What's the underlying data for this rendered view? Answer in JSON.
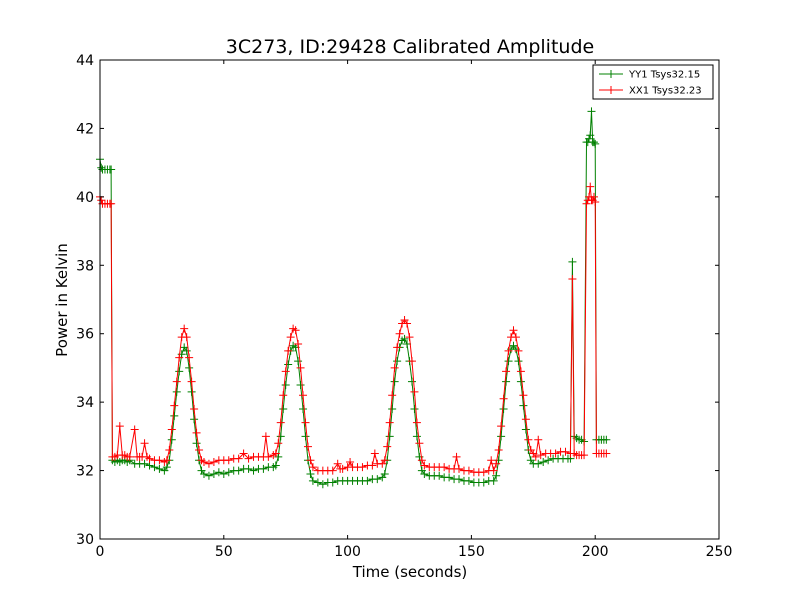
{
  "chart_data": {
    "type": "line",
    "title": "3C273, ID:29428 Calibrated Amplitude",
    "xlabel": "Time (seconds)",
    "ylabel": "Power in Kelvin",
    "xlim": [
      0,
      250
    ],
    "ylim": [
      30,
      44
    ],
    "xticks": [
      "0",
      "50",
      "100",
      "150",
      "200",
      "250"
    ],
    "yticks": [
      "30",
      "32",
      "34",
      "36",
      "38",
      "40",
      "42",
      "44"
    ],
    "grid": false,
    "legend_position": "top-right",
    "marker": "plus",
    "series": [
      {
        "name": "YY1 Tsys32.15",
        "color": "#008000",
        "points": [
          [
            0,
            41.1
          ],
          [
            0.5,
            40.85
          ],
          [
            1,
            40.8
          ],
          [
            2,
            40.8
          ],
          [
            3,
            40.8
          ],
          [
            4,
            40.8
          ],
          [
            4.5,
            40.8
          ],
          [
            5,
            32.3
          ],
          [
            6,
            32.25
          ],
          [
            7,
            32.3
          ],
          [
            8,
            32.25
          ],
          [
            9,
            32.3
          ],
          [
            10,
            32.3
          ],
          [
            11,
            32.25
          ],
          [
            12,
            32.3
          ],
          [
            14,
            32.2
          ],
          [
            16,
            32.2
          ],
          [
            18,
            32.2
          ],
          [
            20,
            32.15
          ],
          [
            22,
            32.1
          ],
          [
            24,
            32.05
          ],
          [
            26,
            32.0
          ],
          [
            27,
            32.1
          ],
          [
            28,
            32.3
          ],
          [
            29,
            32.9
          ],
          [
            30,
            33.6
          ],
          [
            31,
            34.3
          ],
          [
            32,
            34.9
          ],
          [
            33,
            35.4
          ],
          [
            34,
            35.6
          ],
          [
            35,
            35.5
          ],
          [
            36,
            35.0
          ],
          [
            37,
            34.3
          ],
          [
            38,
            33.5
          ],
          [
            39,
            32.8
          ],
          [
            40,
            32.3
          ],
          [
            41,
            32.0
          ],
          [
            42,
            31.9
          ],
          [
            44,
            31.85
          ],
          [
            46,
            31.9
          ],
          [
            48,
            31.95
          ],
          [
            50,
            31.9
          ],
          [
            52,
            31.95
          ],
          [
            54,
            32.0
          ],
          [
            56,
            32.0
          ],
          [
            58,
            32.05
          ],
          [
            60,
            32.05
          ],
          [
            62,
            32.0
          ],
          [
            64,
            32.05
          ],
          [
            66,
            32.05
          ],
          [
            68,
            32.1
          ],
          [
            70,
            32.1
          ],
          [
            71,
            32.15
          ],
          [
            72,
            32.4
          ],
          [
            73,
            33.0
          ],
          [
            74,
            33.8
          ],
          [
            75,
            34.5
          ],
          [
            76,
            35.1
          ],
          [
            77,
            35.5
          ],
          [
            78,
            35.65
          ],
          [
            79,
            35.6
          ],
          [
            80,
            35.2
          ],
          [
            81,
            34.5
          ],
          [
            82,
            33.8
          ],
          [
            83,
            33.0
          ],
          [
            84,
            32.3
          ],
          [
            85,
            31.9
          ],
          [
            86,
            31.7
          ],
          [
            88,
            31.65
          ],
          [
            90,
            31.6
          ],
          [
            92,
            31.65
          ],
          [
            94,
            31.65
          ],
          [
            96,
            31.7
          ],
          [
            98,
            31.7
          ],
          [
            100,
            31.7
          ],
          [
            102,
            31.7
          ],
          [
            104,
            31.7
          ],
          [
            106,
            31.7
          ],
          [
            108,
            31.7
          ],
          [
            110,
            31.75
          ],
          [
            112,
            31.75
          ],
          [
            114,
            31.8
          ],
          [
            115,
            31.9
          ],
          [
            116,
            32.3
          ],
          [
            117,
            33.0
          ],
          [
            118,
            33.8
          ],
          [
            119,
            34.6
          ],
          [
            120,
            35.2
          ],
          [
            121,
            35.6
          ],
          [
            122,
            35.8
          ],
          [
            123,
            35.85
          ],
          [
            124,
            35.7
          ],
          [
            125,
            35.2
          ],
          [
            126,
            34.6
          ],
          [
            127,
            33.8
          ],
          [
            128,
            33.0
          ],
          [
            129,
            32.4
          ],
          [
            130,
            32.0
          ],
          [
            131,
            31.9
          ],
          [
            133,
            31.85
          ],
          [
            135,
            31.85
          ],
          [
            137,
            31.85
          ],
          [
            139,
            31.8
          ],
          [
            141,
            31.8
          ],
          [
            143,
            31.75
          ],
          [
            145,
            31.75
          ],
          [
            147,
            31.7
          ],
          [
            149,
            31.7
          ],
          [
            151,
            31.65
          ],
          [
            153,
            31.65
          ],
          [
            155,
            31.65
          ],
          [
            157,
            31.7
          ],
          [
            159,
            31.7
          ],
          [
            160,
            31.85
          ],
          [
            161,
            32.3
          ],
          [
            162,
            33.0
          ],
          [
            163,
            33.8
          ],
          [
            164,
            34.6
          ],
          [
            165,
            35.2
          ],
          [
            166,
            35.55
          ],
          [
            167,
            35.65
          ],
          [
            168,
            35.55
          ],
          [
            169,
            35.2
          ],
          [
            170,
            34.6
          ],
          [
            171,
            33.9
          ],
          [
            172,
            33.2
          ],
          [
            173,
            32.6
          ],
          [
            174,
            32.3
          ],
          [
            175,
            32.2
          ],
          [
            177,
            32.2
          ],
          [
            179,
            32.25
          ],
          [
            181,
            32.3
          ],
          [
            183,
            32.35
          ],
          [
            185,
            32.35
          ],
          [
            187,
            32.35
          ],
          [
            189,
            32.35
          ],
          [
            190,
            32.35
          ],
          [
            190.8,
            38.1
          ],
          [
            191.5,
            33.0
          ],
          [
            192.5,
            32.95
          ],
          [
            193.5,
            32.9
          ],
          [
            194.5,
            32.9
          ],
          [
            195.5,
            32.85
          ],
          [
            196.5,
            41.6
          ],
          [
            197,
            41.6
          ],
          [
            197.5,
            41.7
          ],
          [
            198,
            41.8
          ],
          [
            198.5,
            42.5
          ],
          [
            199,
            41.6
          ],
          [
            199.5,
            41.6
          ],
          [
            200,
            41.55
          ],
          [
            200.5,
            32.9
          ],
          [
            201.5,
            32.9
          ],
          [
            202.5,
            32.9
          ],
          [
            203.5,
            32.9
          ],
          [
            204.5,
            32.9
          ]
        ]
      },
      {
        "name": "XX1 Tsys32.23",
        "color": "#ff0000",
        "points": [
          [
            0,
            40.0
          ],
          [
            0.5,
            39.9
          ],
          [
            1,
            39.8
          ],
          [
            2,
            39.8
          ],
          [
            3,
            39.8
          ],
          [
            4,
            39.8
          ],
          [
            4.5,
            39.8
          ],
          [
            5,
            32.4
          ],
          [
            6,
            32.4
          ],
          [
            7,
            32.45
          ],
          [
            8,
            33.3
          ],
          [
            9,
            32.45
          ],
          [
            10,
            32.45
          ],
          [
            11,
            32.4
          ],
          [
            12,
            32.4
          ],
          [
            14,
            33.2
          ],
          [
            15,
            32.4
          ],
          [
            16,
            32.4
          ],
          [
            17,
            32.4
          ],
          [
            18,
            32.8
          ],
          [
            19,
            32.4
          ],
          [
            20,
            32.35
          ],
          [
            22,
            32.3
          ],
          [
            24,
            32.3
          ],
          [
            26,
            32.25
          ],
          [
            27,
            32.3
          ],
          [
            28,
            32.6
          ],
          [
            29,
            33.2
          ],
          [
            30,
            33.9
          ],
          [
            31,
            34.6
          ],
          [
            32,
            35.3
          ],
          [
            33,
            35.9
          ],
          [
            34,
            36.15
          ],
          [
            35,
            35.9
          ],
          [
            36,
            35.3
          ],
          [
            37,
            34.6
          ],
          [
            38,
            33.8
          ],
          [
            39,
            33.1
          ],
          [
            40,
            32.6
          ],
          [
            41,
            32.3
          ],
          [
            42,
            32.25
          ],
          [
            44,
            32.2
          ],
          [
            46,
            32.25
          ],
          [
            48,
            32.3
          ],
          [
            50,
            32.3
          ],
          [
            52,
            32.3
          ],
          [
            54,
            32.35
          ],
          [
            56,
            32.35
          ],
          [
            58,
            32.5
          ],
          [
            60,
            32.35
          ],
          [
            62,
            32.4
          ],
          [
            64,
            32.4
          ],
          [
            66,
            32.4
          ],
          [
            67,
            33.0
          ],
          [
            68,
            32.4
          ],
          [
            70,
            32.45
          ],
          [
            71,
            32.5
          ],
          [
            72,
            32.8
          ],
          [
            73,
            33.4
          ],
          [
            74,
            34.2
          ],
          [
            75,
            34.9
          ],
          [
            76,
            35.5
          ],
          [
            77,
            35.9
          ],
          [
            78,
            36.15
          ],
          [
            79,
            36.1
          ],
          [
            80,
            35.7
          ],
          [
            81,
            35.0
          ],
          [
            82,
            34.2
          ],
          [
            83,
            33.4
          ],
          [
            84,
            32.7
          ],
          [
            85,
            32.3
          ],
          [
            86,
            32.1
          ],
          [
            88,
            32.0
          ],
          [
            90,
            32.0
          ],
          [
            92,
            32.0
          ],
          [
            94,
            32.0
          ],
          [
            96,
            32.2
          ],
          [
            97,
            32.05
          ],
          [
            98,
            32.05
          ],
          [
            100,
            32.1
          ],
          [
            101,
            32.25
          ],
          [
            102,
            32.1
          ],
          [
            104,
            32.1
          ],
          [
            106,
            32.1
          ],
          [
            108,
            32.15
          ],
          [
            110,
            32.15
          ],
          [
            111,
            32.5
          ],
          [
            112,
            32.2
          ],
          [
            114,
            32.2
          ],
          [
            115,
            32.3
          ],
          [
            116,
            32.7
          ],
          [
            117,
            33.4
          ],
          [
            118,
            34.2
          ],
          [
            119,
            35.0
          ],
          [
            120,
            35.6
          ],
          [
            121,
            36.0
          ],
          [
            122,
            36.3
          ],
          [
            123,
            36.4
          ],
          [
            124,
            36.3
          ],
          [
            125,
            35.9
          ],
          [
            126,
            35.2
          ],
          [
            127,
            34.3
          ],
          [
            128,
            33.4
          ],
          [
            129,
            32.8
          ],
          [
            130,
            32.3
          ],
          [
            131,
            32.15
          ],
          [
            133,
            32.1
          ],
          [
            135,
            32.1
          ],
          [
            137,
            32.1
          ],
          [
            139,
            32.1
          ],
          [
            141,
            32.05
          ],
          [
            143,
            32.05
          ],
          [
            144,
            32.4
          ],
          [
            145,
            32.05
          ],
          [
            147,
            32.0
          ],
          [
            149,
            32.0
          ],
          [
            151,
            31.95
          ],
          [
            153,
            31.95
          ],
          [
            155,
            31.95
          ],
          [
            157,
            32.0
          ],
          [
            158,
            32.3
          ],
          [
            159,
            32.0
          ],
          [
            160,
            32.2
          ],
          [
            161,
            32.6
          ],
          [
            162,
            33.3
          ],
          [
            163,
            34.1
          ],
          [
            164,
            34.9
          ],
          [
            165,
            35.5
          ],
          [
            166,
            35.9
          ],
          [
            167,
            36.1
          ],
          [
            168,
            35.9
          ],
          [
            169,
            35.5
          ],
          [
            170,
            34.9
          ],
          [
            171,
            34.2
          ],
          [
            172,
            33.5
          ],
          [
            173,
            32.9
          ],
          [
            174,
            32.6
          ],
          [
            175,
            32.5
          ],
          [
            176,
            32.4
          ],
          [
            177,
            32.9
          ],
          [
            178,
            32.45
          ],
          [
            180,
            32.5
          ],
          [
            182,
            32.5
          ],
          [
            184,
            32.5
          ],
          [
            186,
            32.55
          ],
          [
            188,
            32.55
          ],
          [
            190,
            32.5
          ],
          [
            190.8,
            37.6
          ],
          [
            191.5,
            32.5
          ],
          [
            192.5,
            32.45
          ],
          [
            193.5,
            32.45
          ],
          [
            194.5,
            32.45
          ],
          [
            195.5,
            32.45
          ],
          [
            196.5,
            39.8
          ],
          [
            197,
            39.9
          ],
          [
            197.5,
            40.0
          ],
          [
            198,
            40.3
          ],
          [
            198.5,
            39.9
          ],
          [
            199,
            39.9
          ],
          [
            199.5,
            40.0
          ],
          [
            200,
            39.85
          ],
          [
            200.5,
            32.5
          ],
          [
            201.5,
            32.5
          ],
          [
            202.5,
            32.5
          ],
          [
            203.5,
            32.5
          ],
          [
            204.5,
            32.5
          ]
        ]
      }
    ]
  }
}
